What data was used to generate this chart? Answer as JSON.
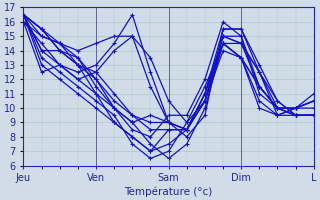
{
  "xlabel": "Température (°c)",
  "xlim": [
    0,
    96
  ],
  "ylim": [
    6,
    17
  ],
  "yticks": [
    6,
    7,
    8,
    9,
    10,
    11,
    12,
    13,
    14,
    15,
    16,
    17
  ],
  "xtick_positions": [
    0,
    24,
    48,
    72,
    96
  ],
  "xtick_labels": [
    "Jeu",
    "Ven",
    "Sam",
    "Dim",
    "L"
  ],
  "background_color": "#d0dde8",
  "grid_color": "#b0c8c0",
  "line_color": "#1111cc",
  "marker_size": 3,
  "line_width": 0.9,
  "x_points": [
    0,
    6,
    12,
    18,
    24,
    30,
    36,
    42,
    48,
    54,
    60,
    66,
    72,
    78,
    84,
    90,
    96
  ],
  "ensemble": [
    [
      16.5,
      15.5,
      14.0,
      13.0,
      12.0,
      10.5,
      9.5,
      9.0,
      9.0,
      8.0,
      9.5,
      15.5,
      15.5,
      13.0,
      10.5,
      9.5,
      9.5
    ],
    [
      16.5,
      15.0,
      14.5,
      13.5,
      11.5,
      10.0,
      9.0,
      9.5,
      9.0,
      8.5,
      10.5,
      15.0,
      15.0,
      11.5,
      10.0,
      10.0,
      10.0
    ],
    [
      16.5,
      15.5,
      14.5,
      13.0,
      12.5,
      11.0,
      9.5,
      8.5,
      8.5,
      8.5,
      11.0,
      15.0,
      14.5,
      12.5,
      10.0,
      9.5,
      9.5
    ],
    [
      16.5,
      15.5,
      14.0,
      13.5,
      12.0,
      10.0,
      8.5,
      8.0,
      9.5,
      9.5,
      12.0,
      16.0,
      15.0,
      11.0,
      10.0,
      10.0,
      10.5
    ],
    [
      16.5,
      14.0,
      14.0,
      13.0,
      11.0,
      9.0,
      8.0,
      7.0,
      8.5,
      8.5,
      11.0,
      15.5,
      15.5,
      12.5,
      9.5,
      9.5,
      9.5
    ],
    [
      16.5,
      14.0,
      13.0,
      12.0,
      11.0,
      10.0,
      9.0,
      7.5,
      6.5,
      7.5,
      10.0,
      14.5,
      14.5,
      11.5,
      10.0,
      9.5,
      9.5
    ],
    [
      16.5,
      13.5,
      12.5,
      11.5,
      10.5,
      9.5,
      7.5,
      6.5,
      7.0,
      9.0,
      11.5,
      14.5,
      13.5,
      10.0,
      9.5,
      10.0,
      10.5
    ],
    [
      16.5,
      13.0,
      12.0,
      11.0,
      10.0,
      9.0,
      8.0,
      7.0,
      7.5,
      8.5,
      11.0,
      14.5,
      13.5,
      10.5,
      9.5,
      10.0,
      11.0
    ],
    [
      16.0,
      12.5,
      13.0,
      12.5,
      13.0,
      14.5,
      16.5,
      12.5,
      9.0,
      8.5,
      10.5,
      15.0,
      14.5,
      12.5,
      10.5,
      9.5,
      9.5
    ],
    [
      16.0,
      14.5,
      13.0,
      12.0,
      12.5,
      14.0,
      15.0,
      11.5,
      9.0,
      8.5,
      10.5,
      14.5,
      13.5,
      11.5,
      10.0,
      9.5,
      9.5
    ],
    [
      16.0,
      15.0,
      14.5,
      14.0,
      14.5,
      15.0,
      15.0,
      13.5,
      10.5,
      9.0,
      10.5,
      14.0,
      13.5,
      11.5,
      10.0,
      10.0,
      10.5
    ]
  ]
}
